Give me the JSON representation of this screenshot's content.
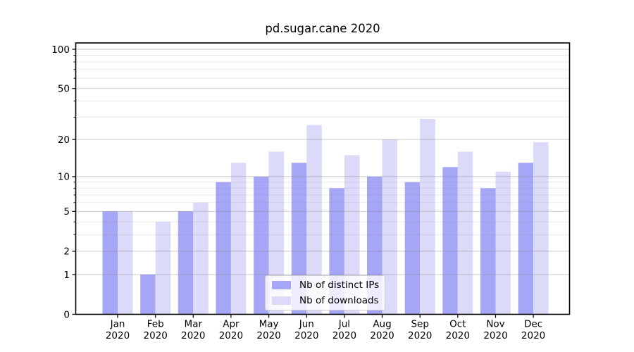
{
  "chart_data": {
    "type": "bar",
    "title": "pd.sugar.cane 2020",
    "categories": [
      "Jan 2020",
      "Feb 2020",
      "Mar 2020",
      "Apr 2020",
      "May 2020",
      "Jun 2020",
      "Jul 2020",
      "Aug 2020",
      "Sep 2020",
      "Oct 2020",
      "Nov 2020",
      "Dec 2020"
    ],
    "series": [
      {
        "name": "Nb of distinct IPs",
        "color": "#a6a6f7",
        "values": [
          5,
          1,
          5,
          9,
          10,
          13,
          8,
          10,
          9,
          12,
          8,
          13
        ]
      },
      {
        "name": "Nb of downloads",
        "color": "#dbdbf9",
        "values": [
          5,
          4,
          6,
          13,
          16,
          26,
          15,
          20,
          29,
          16,
          11,
          19
        ]
      }
    ],
    "xlabel": "",
    "ylabel": "",
    "yscale": "log1p",
    "ylim": [
      0,
      112
    ],
    "y_tick_values": [
      0,
      1,
      2,
      5,
      10,
      20,
      50,
      100
    ],
    "y_tick_labels": [
      "0",
      "1",
      "2",
      "5",
      "10",
      "20",
      "50",
      "100"
    ],
    "y_minor_gridline_values": [
      3,
      4,
      6,
      7,
      8,
      9,
      30,
      40,
      60,
      70,
      80,
      90
    ],
    "grid": true,
    "legend_position": "lower center"
  },
  "colors": {
    "background": "#ffffff",
    "axis": "#000000",
    "text": "#000000",
    "grid_major": "rgba(128,128,128,0.42)",
    "grid_minor": "rgba(128,128,128,0.16)",
    "legend_border": "#cccccc"
  }
}
